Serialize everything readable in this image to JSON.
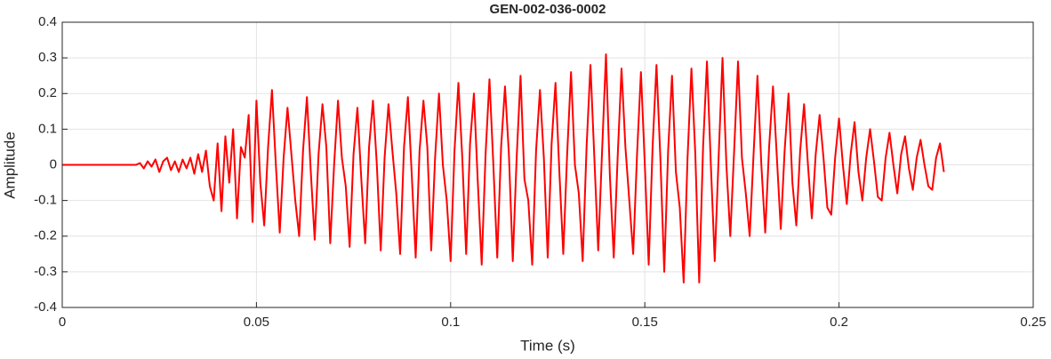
{
  "chart_data": {
    "type": "line",
    "title": "GEN-002-036-0002",
    "xlabel": "Time (s)",
    "ylabel": "Amplitude",
    "xlim": [
      0,
      0.25
    ],
    "xticks": [
      0,
      0.05,
      0.1,
      0.15,
      0.2,
      0.25
    ],
    "ylim": [
      -0.4,
      0.4
    ],
    "yticks": [
      -0.4,
      -0.3,
      -0.2,
      -0.1,
      0,
      0.1,
      0.2,
      0.3,
      0.4
    ],
    "grid": true,
    "x": [
      0,
      0.001,
      0.002,
      0.003,
      0.004,
      0.005,
      0.006,
      0.007,
      0.008,
      0.009,
      0.01,
      0.011,
      0.012,
      0.013,
      0.014,
      0.015,
      0.016,
      0.017,
      0.018,
      0.019,
      0.02,
      0.021,
      0.022,
      0.023,
      0.024,
      0.025,
      0.026,
      0.027,
      0.028,
      0.029,
      0.03,
      0.031,
      0.032,
      0.033,
      0.034,
      0.035,
      0.036,
      0.037,
      0.038,
      0.039,
      0.04,
      0.041,
      0.042,
      0.043,
      0.044,
      0.045,
      0.046,
      0.047,
      0.048,
      0.049,
      0.05,
      0.051,
      0.052,
      0.053,
      0.054,
      0.055,
      0.056,
      0.057,
      0.058,
      0.059,
      0.06,
      0.061,
      0.062,
      0.063,
      0.064,
      0.065,
      0.066,
      0.067,
      0.068,
      0.069,
      0.07,
      0.071,
      0.072,
      0.073,
      0.074,
      0.075,
      0.076,
      0.077,
      0.078,
      0.079,
      0.08,
      0.081,
      0.082,
      0.083,
      0.084,
      0.085,
      0.086,
      0.087,
      0.088,
      0.089,
      0.09,
      0.091,
      0.092,
      0.093,
      0.094,
      0.095,
      0.096,
      0.097,
      0.098,
      0.099,
      0.1,
      0.101,
      0.102,
      0.103,
      0.104,
      0.105,
      0.106,
      0.107,
      0.108,
      0.109,
      0.11,
      0.111,
      0.112,
      0.113,
      0.114,
      0.115,
      0.116,
      0.117,
      0.118,
      0.119,
      0.12,
      0.121,
      0.122,
      0.123,
      0.124,
      0.125,
      0.126,
      0.127,
      0.128,
      0.129,
      0.13,
      0.131,
      0.132,
      0.133,
      0.134,
      0.135,
      0.136,
      0.137,
      0.138,
      0.139,
      0.14,
      0.141,
      0.142,
      0.143,
      0.144,
      0.145,
      0.146,
      0.147,
      0.148,
      0.149,
      0.15,
      0.151,
      0.152,
      0.153,
      0.154,
      0.155,
      0.156,
      0.157,
      0.158,
      0.159,
      0.16,
      0.161,
      0.162,
      0.163,
      0.164,
      0.165,
      0.166,
      0.167,
      0.168,
      0.169,
      0.17,
      0.171,
      0.172,
      0.173,
      0.174,
      0.175,
      0.176,
      0.177,
      0.178,
      0.179,
      0.18,
      0.181,
      0.182,
      0.183,
      0.184,
      0.185,
      0.186,
      0.187,
      0.188,
      0.189,
      0.19,
      0.191,
      0.192,
      0.193,
      0.194,
      0.195,
      0.196,
      0.197,
      0.198,
      0.199,
      0.2,
      0.201,
      0.202,
      0.203,
      0.204,
      0.205,
      0.206,
      0.207,
      0.208,
      0.209,
      0.21,
      0.211,
      0.212,
      0.213,
      0.214,
      0.215,
      0.216,
      0.217,
      0.218,
      0.219,
      0.22,
      0.221,
      0.222,
      0.223,
      0.224,
      0.225,
      0.226,
      0.227
    ],
    "series": [
      {
        "color": "#ff0000",
        "values": [
          0,
          0,
          0,
          0,
          0,
          0,
          0,
          0,
          0,
          0,
          0,
          0,
          0,
          0,
          0,
          0,
          0,
          0,
          0,
          0,
          0.005,
          -0.01,
          0.01,
          -0.005,
          0.015,
          -0.02,
          0.01,
          0.02,
          -0.015,
          0.01,
          -0.02,
          0.015,
          -0.01,
          0.02,
          -0.025,
          0.03,
          -0.02,
          0.04,
          -0.06,
          -0.1,
          0.06,
          -0.13,
          0.08,
          -0.05,
          0.1,
          -0.15,
          0.05,
          0.02,
          0.14,
          -0.16,
          0.18,
          -0.05,
          -0.17,
          0.05,
          0.21,
          0.0,
          -0.19,
          0.02,
          0.16,
          0.03,
          -0.1,
          -0.2,
          0.04,
          0.19,
          -0.02,
          -0.21,
          0.03,
          0.17,
          0.05,
          -0.22,
          0.0,
          0.18,
          0.02,
          -0.06,
          -0.23,
          0.03,
          0.16,
          -0.04,
          -0.22,
          0.05,
          0.18,
          0.0,
          -0.24,
          0.02,
          0.17,
          0.04,
          -0.08,
          -0.25,
          0.05,
          0.19,
          -0.03,
          -0.26,
          0.04,
          0.18,
          0.05,
          -0.24,
          0.02,
          0.2,
          0.0,
          -0.1,
          -0.27,
          0.04,
          0.23,
          0.02,
          -0.25,
          0.06,
          0.2,
          -0.05,
          -0.28,
          0.03,
          0.24,
          0.0,
          -0.26,
          0.05,
          0.22,
          0.03,
          -0.27,
          0.02,
          0.25,
          -0.04,
          -0.1,
          -0.28,
          0.04,
          0.21,
          0.02,
          -0.26,
          0.06,
          0.23,
          -0.02,
          -0.25,
          0.03,
          0.26,
          0.0,
          -0.08,
          -0.27,
          0.05,
          0.28,
          0.02,
          -0.24,
          0.04,
          0.31,
          -0.03,
          -0.26,
          0.02,
          0.27,
          0.05,
          -0.1,
          -0.25,
          0.03,
          0.26,
          0.0,
          -0.28,
          0.05,
          0.28,
          0.02,
          -0.3,
          0.04,
          0.25,
          -0.02,
          -0.12,
          -0.33,
          0.02,
          0.27,
          0.03,
          -0.33,
          0.05,
          0.29,
          0.0,
          -0.27,
          0.02,
          0.3,
          0.0,
          -0.2,
          0.04,
          0.29,
          0.02,
          -0.08,
          -0.2,
          0.03,
          0.25,
          0.0,
          -0.19,
          0.05,
          0.22,
          0.02,
          -0.18,
          0.04,
          0.2,
          -0.05,
          -0.17,
          0.04,
          0.17,
          0.0,
          -0.15,
          0.03,
          0.14,
          0.02,
          -0.12,
          -0.14,
          0.02,
          0.13,
          0.0,
          -0.11,
          0.03,
          0.12,
          -0.02,
          -0.1,
          0.02,
          0.1,
          0.01,
          -0.09,
          -0.1,
          0.02,
          0.09,
          0.0,
          -0.08,
          0.03,
          0.08,
          -0.01,
          -0.07,
          0.02,
          0.07,
          0.0,
          -0.06,
          -0.07,
          0.02,
          0.06,
          -0.02
        ]
      }
    ]
  }
}
